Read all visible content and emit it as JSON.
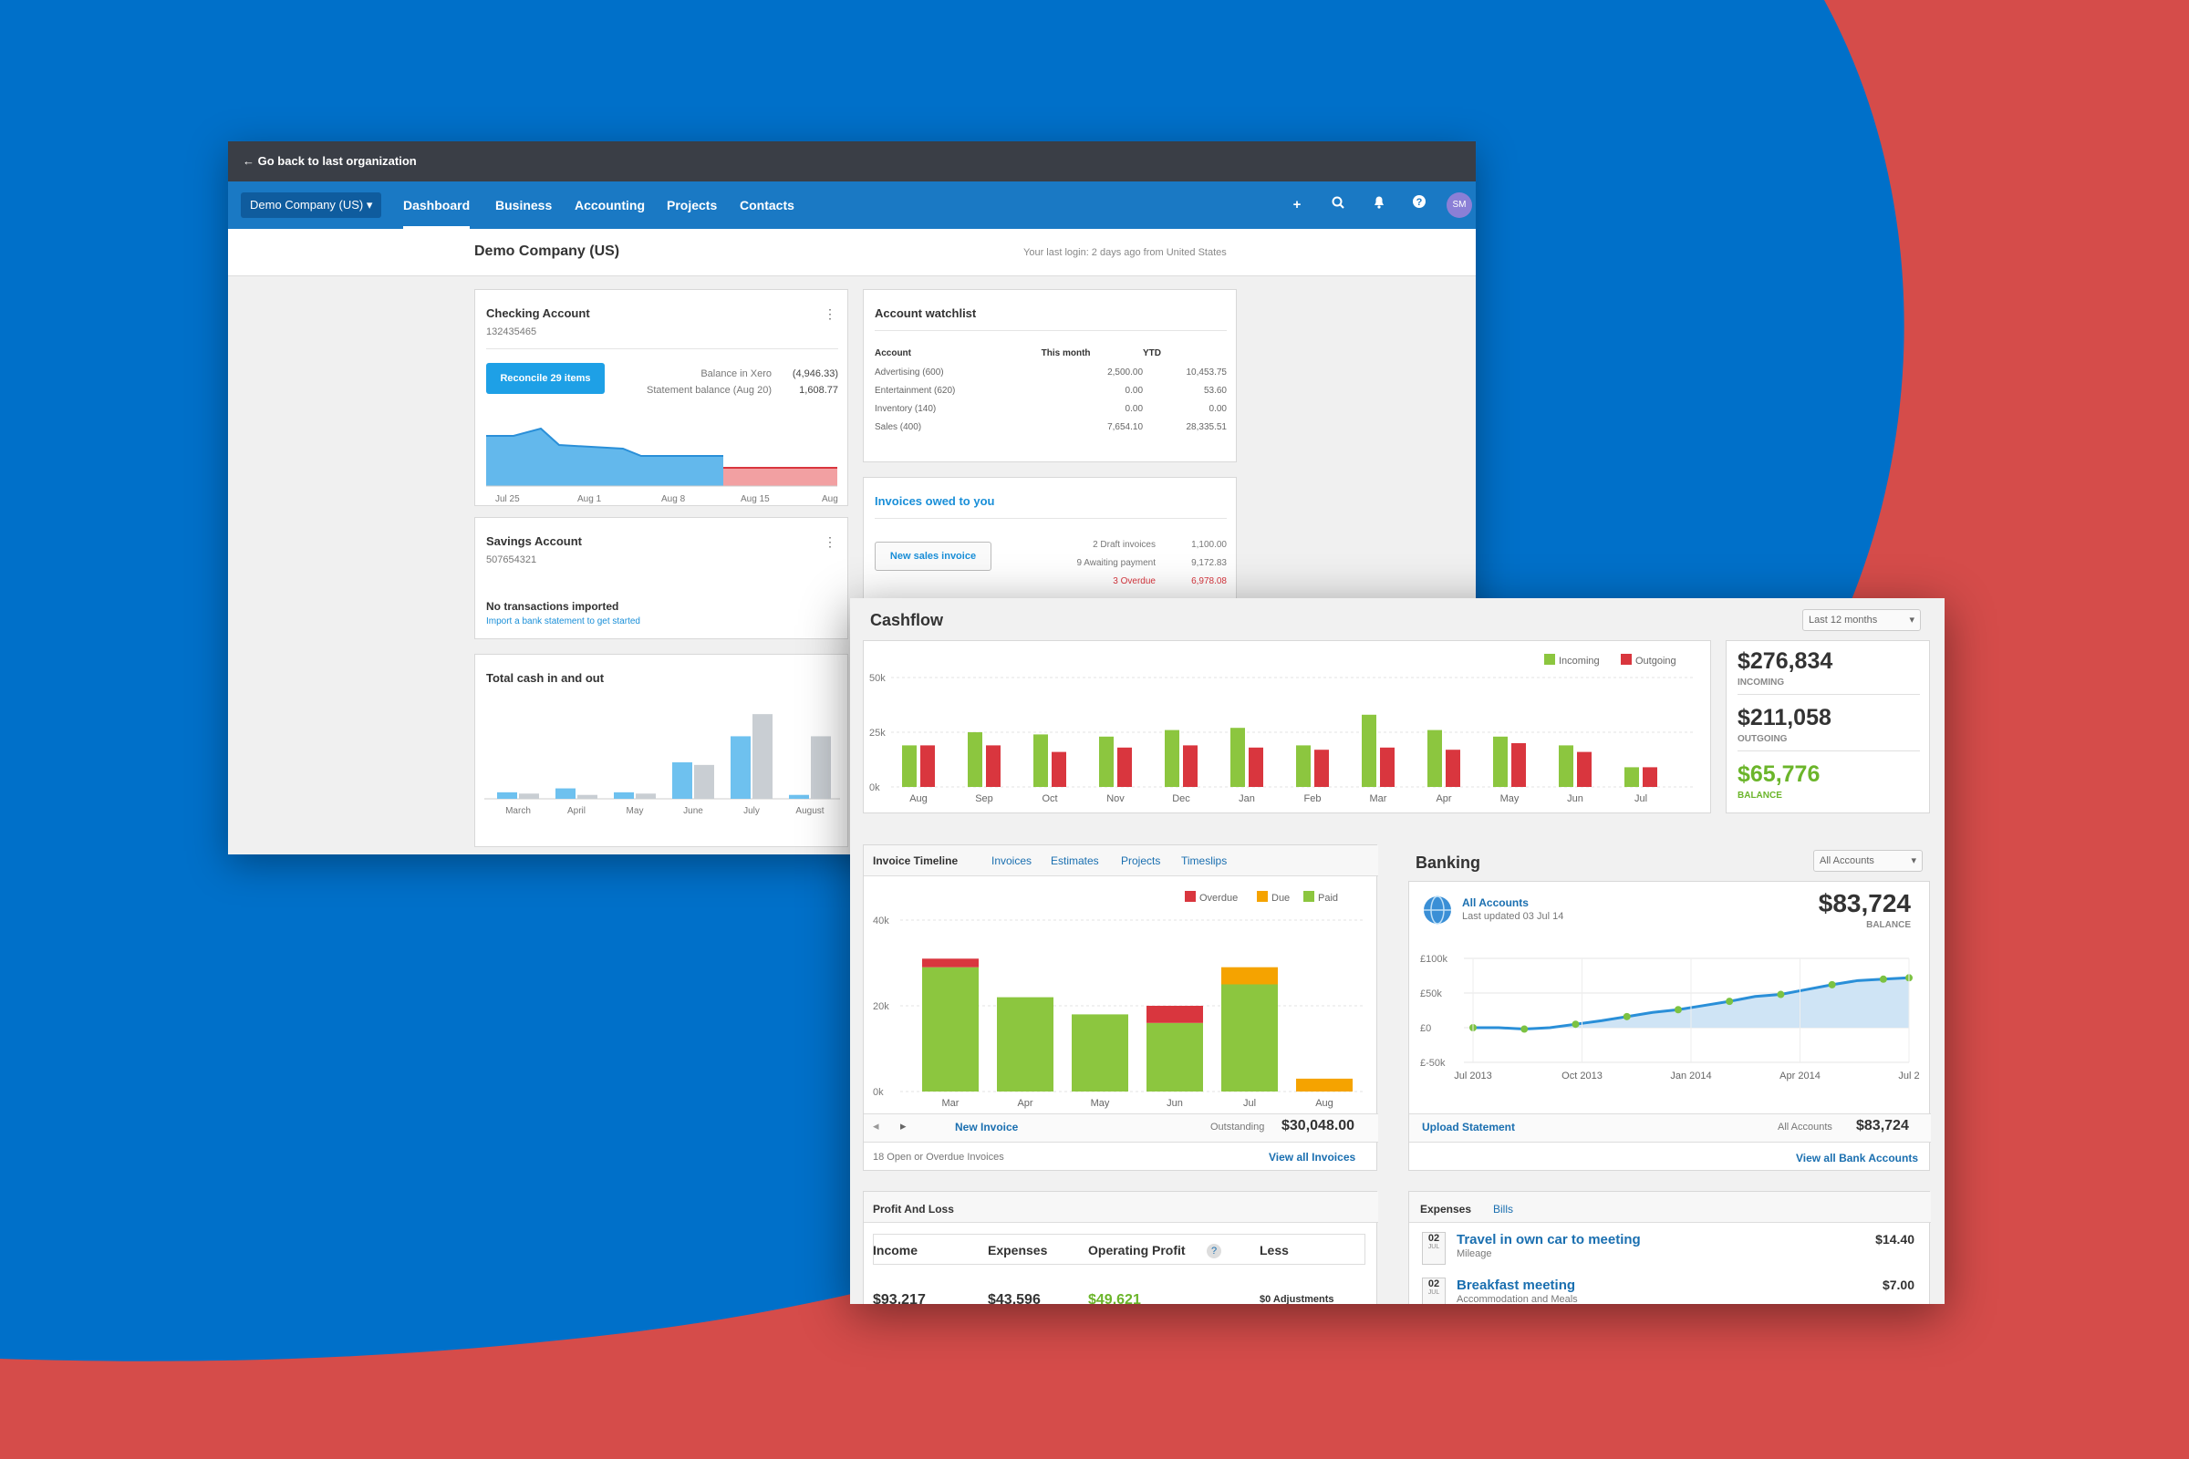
{
  "colors": {
    "bg_blue": "#0070c9",
    "bg_red": "#d54c4a",
    "nav": "#1a79c4",
    "incoming": "#8cc63f",
    "outgoing": "#d9363e",
    "due": "#f5a300",
    "link": "#1a6fb0"
  },
  "w1": {
    "back_link": "Go back to last organization",
    "org_button": "Demo Company (US)",
    "nav": [
      "Dashboard",
      "Business",
      "Accounting",
      "Projects",
      "Contacts"
    ],
    "avatar": "SM",
    "org_title": "Demo Company (US)",
    "last_login": "Your last login: 2 days ago from United States",
    "checking": {
      "title": "Checking Account",
      "number": "132435465",
      "reconcile": "Reconcile 29 items",
      "bal_xero_label": "Balance in Xero",
      "bal_xero": "(4,946.33)",
      "stmt_label": "Statement balance (Aug 20)",
      "stmt": "1,608.77",
      "axis": [
        "Jul 25",
        "Aug 1",
        "Aug 8",
        "Aug 15",
        "Aug"
      ]
    },
    "watchlist": {
      "title": "Account watchlist",
      "headers": [
        "Account",
        "This month",
        "YTD"
      ],
      "rows": [
        [
          "Advertising (600)",
          "2,500.00",
          "10,453.75"
        ],
        [
          "Entertainment (620)",
          "0.00",
          "53.60"
        ],
        [
          "Inventory (140)",
          "0.00",
          "0.00"
        ],
        [
          "Sales (400)",
          "7,654.10",
          "28,335.51"
        ]
      ]
    },
    "invoices_owed": {
      "title": "Invoices owed to you",
      "new_btn": "New sales invoice",
      "rows": [
        [
          "2 Draft invoices",
          "1,100.00"
        ],
        [
          "9 Awaiting payment",
          "9,172.83"
        ],
        [
          "3 Overdue",
          "6,978.08"
        ]
      ]
    },
    "savings": {
      "title": "Savings Account",
      "number": "507654321",
      "none": "No transactions imported",
      "hint": "Import a bank statement to get started"
    },
    "totalcash": {
      "title": "Total cash in and out",
      "months": [
        "March",
        "April",
        "May",
        "June",
        "July",
        "August"
      ],
      "cash_in": [
        5,
        8,
        5,
        28,
        48,
        3
      ],
      "cash_out": [
        4,
        3,
        4,
        26,
        65,
        48
      ]
    }
  },
  "w2": {
    "cashflow": {
      "title": "Cashflow",
      "period": "Last 12 months",
      "legend": [
        "Incoming",
        "Outgoing"
      ],
      "ticks": [
        "50k",
        "25k",
        "0k"
      ],
      "months": [
        "Aug",
        "Sep",
        "Oct",
        "Nov",
        "Dec",
        "Jan",
        "Feb",
        "Mar",
        "Apr",
        "May",
        "Jun",
        "Jul"
      ],
      "incoming": [
        19,
        25,
        24,
        23,
        26,
        27,
        19,
        33,
        26,
        23,
        19,
        9
      ],
      "outgoing": [
        19,
        19,
        16,
        18,
        19,
        18,
        17,
        18,
        17,
        20,
        16,
        9
      ],
      "incoming_total": "$276,834",
      "incoming_label": "INCOMING",
      "outgoing_total": "$211,058",
      "outgoing_label": "OUTGOING",
      "balance_total": "$65,776",
      "balance_label": "BALANCE"
    },
    "invoice": {
      "tabs": [
        "Invoice Timeline",
        "Invoices",
        "Estimates",
        "Projects",
        "Timeslips"
      ],
      "legend": [
        "Overdue",
        "Due",
        "Paid"
      ],
      "ticks": [
        "40k",
        "20k",
        "0k"
      ],
      "months": [
        "Mar",
        "Apr",
        "May",
        "Jun",
        "Jul",
        "Aug"
      ],
      "paid": [
        29,
        22,
        18,
        16,
        25,
        0
      ],
      "overdue": [
        2,
        0,
        0,
        4,
        0,
        0
      ],
      "due": [
        0,
        0,
        0,
        0,
        4,
        3
      ],
      "new_invoice": "New Invoice",
      "outstanding_label": "Outstanding",
      "outstanding": "$30,048.00",
      "open_note": "18 Open or Overdue Invoices",
      "view_all": "View all Invoices"
    },
    "banking": {
      "title": "Banking",
      "filter": "All Accounts",
      "account": "All Accounts",
      "updated": "Last updated 03 Jul 14",
      "balance": "$83,724",
      "balance_label": "BALANCE",
      "ticks": [
        "£100k",
        "£50k",
        "£0",
        "£-50k"
      ],
      "xticks": [
        "Jul 2013",
        "Oct 2013",
        "Jan 2014",
        "Apr 2014",
        "Jul 2"
      ],
      "series": [
        0,
        0,
        -2,
        0,
        5,
        10,
        16,
        22,
        26,
        32,
        38,
        45,
        48,
        55,
        62,
        68,
        70,
        72
      ],
      "upload": "Upload Statement",
      "all_label": "All Accounts",
      "all_value": "$83,724",
      "view_all": "View all Bank Accounts"
    },
    "pnl": {
      "title": "Profit And Loss",
      "cols": [
        "Income",
        "Expenses",
        "Operating Profit",
        "Less"
      ],
      "help": "?",
      "values": [
        "$93,217",
        "$43,596",
        "$49,621",
        "$0 Adjustments"
      ]
    },
    "expenses": {
      "tabs": [
        "Expenses",
        "Bills"
      ],
      "items": [
        {
          "day": "02",
          "mon": "JUL",
          "title": "Travel in own car to meeting",
          "sub": "Mileage",
          "amount": "$14.40"
        },
        {
          "day": "02",
          "mon": "JUL",
          "title": "Breakfast meeting",
          "sub": "Accommodation and Meals",
          "amount": "$7.00"
        }
      ]
    }
  }
}
